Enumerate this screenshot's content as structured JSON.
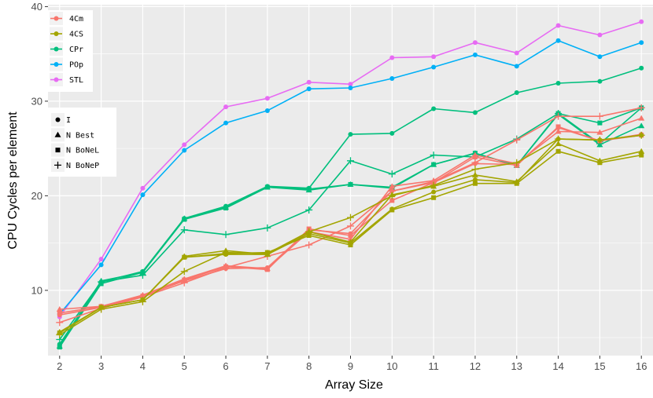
{
  "chart_data": {
    "type": "line",
    "xlabel": "Array Size",
    "ylabel": "CPU Cycles per element",
    "xlim": [
      1.72,
      16.28
    ],
    "ylim": [
      3.1,
      40.2
    ],
    "x_ticks": [
      2,
      3,
      4,
      5,
      6,
      7,
      8,
      9,
      10,
      11,
      12,
      13,
      14,
      15,
      16
    ],
    "y_ticks": [
      10,
      20,
      30,
      40
    ],
    "grid": true,
    "legend_placement": "top-left",
    "color_legend": [
      {
        "name": "4Cm",
        "color": "#F8766D"
      },
      {
        "name": "4CS",
        "color": "#A3A500"
      },
      {
        "name": "CPr",
        "color": "#00BF7D"
      },
      {
        "name": "POp",
        "color": "#00B0F6"
      },
      {
        "name": "STL",
        "color": "#E76BF3"
      }
    ],
    "shape_legend": [
      {
        "name": "I",
        "shape": "circle"
      },
      {
        "name": "N Best",
        "shape": "triangle"
      },
      {
        "name": "N BoNeL",
        "shape": "square"
      },
      {
        "name": "N BoNeP",
        "shape": "plus"
      }
    ],
    "x": [
      2,
      3,
      4,
      5,
      6,
      7,
      8,
      9,
      10,
      11,
      12,
      13,
      14,
      15,
      16
    ],
    "series": [
      {
        "color_group": "STL",
        "shape": "circle",
        "values": [
          7.2,
          13.3,
          20.8,
          25.4,
          29.4,
          30.3,
          32.0,
          31.8,
          34.6,
          34.7,
          36.2,
          35.1,
          38.0,
          37.0,
          38.4
        ]
      },
      {
        "color_group": "POp",
        "shape": "circle",
        "values": [
          7.5,
          12.7,
          20.1,
          24.8,
          27.7,
          29.0,
          31.3,
          31.4,
          32.4,
          33.6,
          34.9,
          33.7,
          36.4,
          34.7,
          36.2
        ]
      },
      {
        "color_group": "CPr",
        "shape": "circle",
        "values": [
          4.3,
          10.9,
          12.0,
          17.6,
          18.9,
          21.0,
          20.8,
          26.5,
          26.6,
          29.2,
          28.8,
          30.9,
          31.9,
          32.1,
          33.5
        ]
      },
      {
        "color_group": "CPr",
        "shape": "square",
        "values": [
          4.0,
          10.7,
          11.9,
          17.5,
          18.7,
          20.9,
          20.7,
          21.2,
          20.9,
          23.3,
          24.5,
          23.2,
          28.7,
          27.7,
          29.3
        ]
      },
      {
        "color_group": "CPr",
        "shape": "plus",
        "values": [
          4.8,
          10.9,
          11.6,
          16.4,
          15.9,
          16.6,
          18.5,
          23.7,
          22.3,
          24.3,
          24.1,
          26.0,
          28.7,
          25.5,
          29.3
        ]
      },
      {
        "color_group": "CPr",
        "shape": "triangle",
        "values": [
          4.1,
          11.0,
          11.9,
          17.6,
          18.8,
          20.9,
          20.6,
          21.2,
          20.8,
          23.3,
          24.5,
          23.2,
          28.6,
          25.4,
          27.4
        ]
      },
      {
        "color_group": "4Cm",
        "shape": "triangle",
        "values": [
          8.0,
          8.3,
          9.5,
          11.2,
          12.6,
          12.3,
          16.2,
          15.4,
          21.0,
          21.6,
          24.3,
          23.4,
          26.8,
          26.7,
          28.2
        ]
      },
      {
        "color_group": "4Cm",
        "shape": "circle",
        "values": [
          7.4,
          8.2,
          9.4,
          11.0,
          12.3,
          12.4,
          16.4,
          16.0,
          20.5,
          21.4,
          23.4,
          23.3,
          27.2,
          25.8,
          26.5
        ]
      },
      {
        "color_group": "4Cm",
        "shape": "square",
        "values": [
          7.6,
          8.3,
          9.4,
          11.1,
          12.5,
          12.2,
          16.5,
          15.8,
          19.5,
          21.4,
          24.1,
          23.2,
          27.3,
          25.8,
          26.4
        ]
      },
      {
        "color_group": "4Cm",
        "shape": "plus",
        "values": [
          6.6,
          8.1,
          9.3,
          10.8,
          12.4,
          13.6,
          14.8,
          16.8,
          20.5,
          21.5,
          23.5,
          25.9,
          28.4,
          28.4,
          29.3
        ]
      },
      {
        "color_group": "4CS",
        "shape": "triangle",
        "values": [
          5.6,
          8.2,
          9.0,
          13.6,
          14.2,
          13.8,
          16.2,
          15.1,
          20.1,
          21.0,
          22.2,
          21.5,
          25.5,
          23.7,
          24.7
        ]
      },
      {
        "color_group": "4CS",
        "shape": "square",
        "values": [
          5.5,
          8.2,
          9.0,
          13.5,
          13.9,
          14.0,
          15.8,
          14.8,
          18.5,
          19.8,
          21.3,
          21.3,
          24.7,
          23.5,
          24.3
        ]
      },
      {
        "color_group": "4CS",
        "shape": "circle",
        "values": [
          5.5,
          8.2,
          9.0,
          13.5,
          13.8,
          13.8,
          16.0,
          15.0,
          18.6,
          20.4,
          21.7,
          21.4,
          26.0,
          25.9,
          26.4
        ]
      },
      {
        "color_group": "4CS",
        "shape": "plus",
        "values": [
          5.3,
          8.0,
          8.8,
          12.0,
          14.0,
          13.9,
          16.2,
          17.7,
          20.0,
          21.1,
          22.8,
          23.5,
          26.0,
          25.9,
          26.4
        ]
      }
    ]
  }
}
